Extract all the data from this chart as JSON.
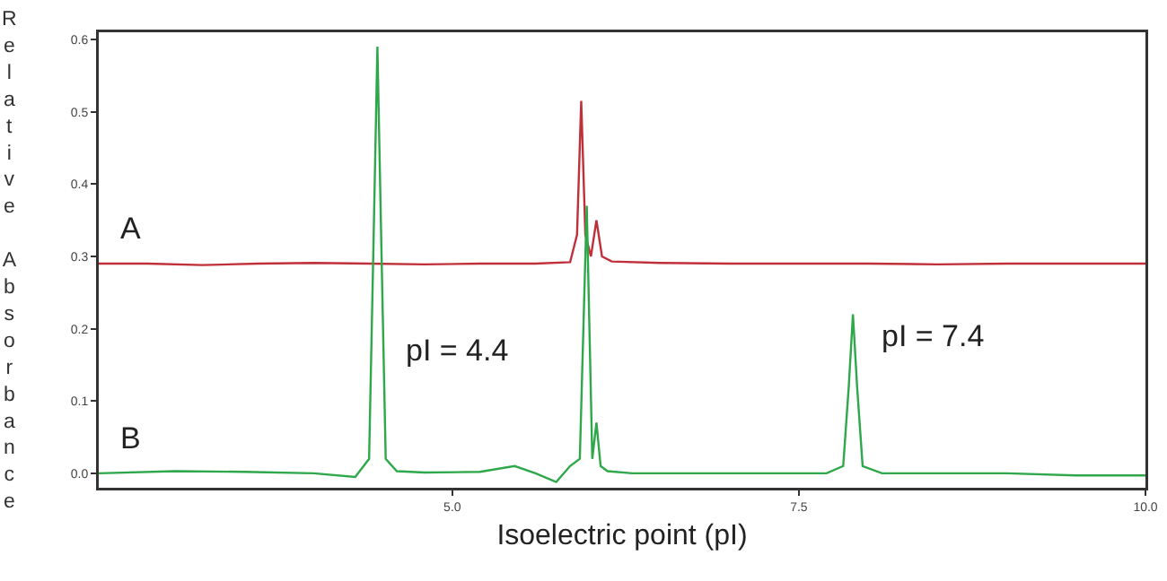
{
  "chart_data": {
    "type": "line",
    "xlabel": "Isoelectric point (pI)",
    "ylabel": "Relative Absorbance",
    "xlim": [
      2.45,
      10.0
    ],
    "xticks": [
      {
        "value": 5,
        "label": "5.0"
      },
      {
        "value": 7.5,
        "label": "7.5"
      },
      {
        "value": 10,
        "label": "10.0"
      }
    ],
    "ylim": [
      -0.02,
      0.61
    ],
    "yticks": [
      {
        "value": 0,
        "label": "0.0"
      },
      {
        "value": 0.1,
        "label": "0.1"
      },
      {
        "value": 0.2,
        "label": "0.2"
      },
      {
        "value": 0.3,
        "label": "0.3"
      },
      {
        "value": 0.4,
        "label": "0.4"
      },
      {
        "value": 0.5,
        "label": "0.5"
      },
      {
        "value": 0.6,
        "label": "0.6"
      }
    ],
    "grid": false,
    "legend": false,
    "marker": "none",
    "line_style": "solid",
    "series": [
      {
        "name": "A",
        "color": "#c0303a",
        "x": [
          2.45,
          2.8,
          3.2,
          3.6,
          4.0,
          4.4,
          4.8,
          5.2,
          5.6,
          5.85,
          5.9,
          5.93,
          5.96,
          6.0,
          6.04,
          6.08,
          6.15,
          6.5,
          7,
          7.5,
          8,
          8.5,
          9,
          9.5,
          10
        ],
        "values": [
          0.29,
          0.29,
          0.288,
          0.29,
          0.291,
          0.29,
          0.289,
          0.29,
          0.29,
          0.292,
          0.33,
          0.515,
          0.33,
          0.3,
          0.35,
          0.3,
          0.293,
          0.291,
          0.29,
          0.29,
          0.29,
          0.289,
          0.29,
          0.29,
          0.29
        ]
      },
      {
        "name": "B",
        "color": "#2ea84a",
        "x": [
          2.45,
          3,
          3.5,
          4,
          4.3,
          4.4,
          4.43,
          4.46,
          4.49,
          4.52,
          4.6,
          4.8,
          5.2,
          5.45,
          5.6,
          5.75,
          5.85,
          5.92,
          5.97,
          6.01,
          6.04,
          6.07,
          6.12,
          6.3,
          6.8,
          7.3,
          7.7,
          7.82,
          7.86,
          7.89,
          7.92,
          7.96,
          8.1,
          8.5,
          9,
          9.5,
          10
        ],
        "values": [
          0,
          0.003,
          0.002,
          0,
          -0.005,
          0.02,
          0.3,
          0.59,
          0.3,
          0.02,
          0.003,
          0.001,
          0.002,
          0.01,
          0,
          -0.012,
          0.01,
          0.02,
          0.37,
          0.02,
          0.07,
          0.01,
          0.003,
          0,
          0,
          0,
          0,
          0.01,
          0.12,
          0.22,
          0.12,
          0.01,
          0,
          0,
          0,
          -0.003,
          -0.003
        ]
      }
    ],
    "annotations": [
      {
        "text": "pI = 4.4",
        "x": 4.46,
        "y": 0.17
      },
      {
        "text": "pI = 7.4",
        "x": 7.89,
        "y": 0.19
      }
    ]
  }
}
